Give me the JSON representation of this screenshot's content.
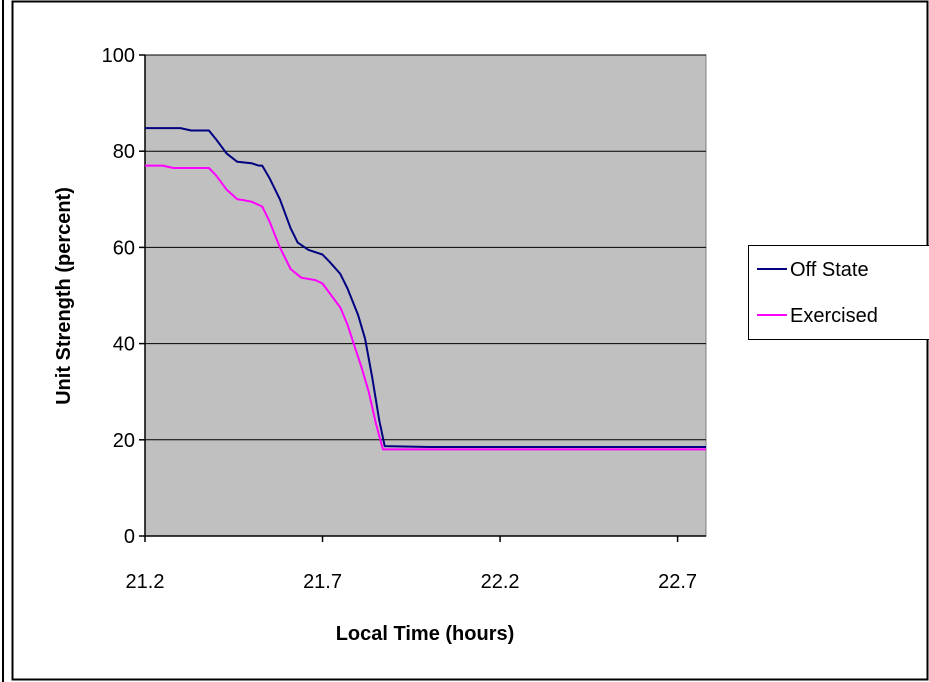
{
  "chart_data": {
    "type": "line",
    "title": "",
    "xlabel": "Local Time (hours)",
    "ylabel": "Unit Strength (percent)",
    "xlim": [
      21.2,
      22.78
    ],
    "ylim": [
      0,
      100
    ],
    "x_ticks": [
      21.2,
      21.7,
      22.2,
      22.7
    ],
    "x_tick_labels": [
      "21.2",
      "21.7",
      "22.2",
      "22.7"
    ],
    "y_ticks": [
      0,
      20,
      40,
      60,
      80,
      100
    ],
    "y_tick_labels": [
      "0",
      "20",
      "40",
      "60",
      "80",
      "100"
    ],
    "grid": "horizontal",
    "plot_background": "#c0c0c0",
    "legend_position": "right",
    "series": [
      {
        "name": "Off State",
        "color": "#000080",
        "points": [
          [
            21.2,
            84.8
          ],
          [
            21.25,
            84.8
          ],
          [
            21.3,
            84.8
          ],
          [
            21.33,
            84.3
          ],
          [
            21.38,
            84.3
          ],
          [
            21.4,
            82.5
          ],
          [
            21.43,
            79.5
          ],
          [
            21.46,
            77.8
          ],
          [
            21.5,
            77.5
          ],
          [
            21.52,
            77.0
          ],
          [
            21.53,
            77.0
          ],
          [
            21.55,
            74.5
          ],
          [
            21.58,
            70.0
          ],
          [
            21.61,
            64.0
          ],
          [
            21.63,
            61.0
          ],
          [
            21.66,
            59.5
          ],
          [
            21.7,
            58.5
          ],
          [
            21.72,
            57.0
          ],
          [
            21.75,
            54.5
          ],
          [
            21.77,
            51.5
          ],
          [
            21.8,
            46.0
          ],
          [
            21.82,
            41.0
          ],
          [
            21.84,
            33.0
          ],
          [
            21.86,
            24.0
          ],
          [
            21.875,
            18.7
          ],
          [
            22.0,
            18.5
          ],
          [
            22.2,
            18.5
          ],
          [
            22.5,
            18.5
          ],
          [
            22.78,
            18.5
          ]
        ]
      },
      {
        "name": "Exercised",
        "color": "#ff00ff",
        "points": [
          [
            21.2,
            77.0
          ],
          [
            21.25,
            77.0
          ],
          [
            21.28,
            76.5
          ],
          [
            21.38,
            76.5
          ],
          [
            21.4,
            75.0
          ],
          [
            21.43,
            72.0
          ],
          [
            21.46,
            70.0
          ],
          [
            21.48,
            69.8
          ],
          [
            21.5,
            69.5
          ],
          [
            21.53,
            68.5
          ],
          [
            21.55,
            65.5
          ],
          [
            21.58,
            60.0
          ],
          [
            21.61,
            55.5
          ],
          [
            21.64,
            53.7
          ],
          [
            21.68,
            53.2
          ],
          [
            21.7,
            52.5
          ],
          [
            21.72,
            50.5
          ],
          [
            21.75,
            47.5
          ],
          [
            21.77,
            44.0
          ],
          [
            21.79,
            39.5
          ],
          [
            21.81,
            35.0
          ],
          [
            21.83,
            30.0
          ],
          [
            21.85,
            23.5
          ],
          [
            21.87,
            18.0
          ],
          [
            22.0,
            18.0
          ],
          [
            22.2,
            18.0
          ],
          [
            22.5,
            18.0
          ],
          [
            22.78,
            18.0
          ]
        ]
      }
    ]
  },
  "legend": {
    "off_state": "Off State",
    "exercised": "Exercised"
  }
}
